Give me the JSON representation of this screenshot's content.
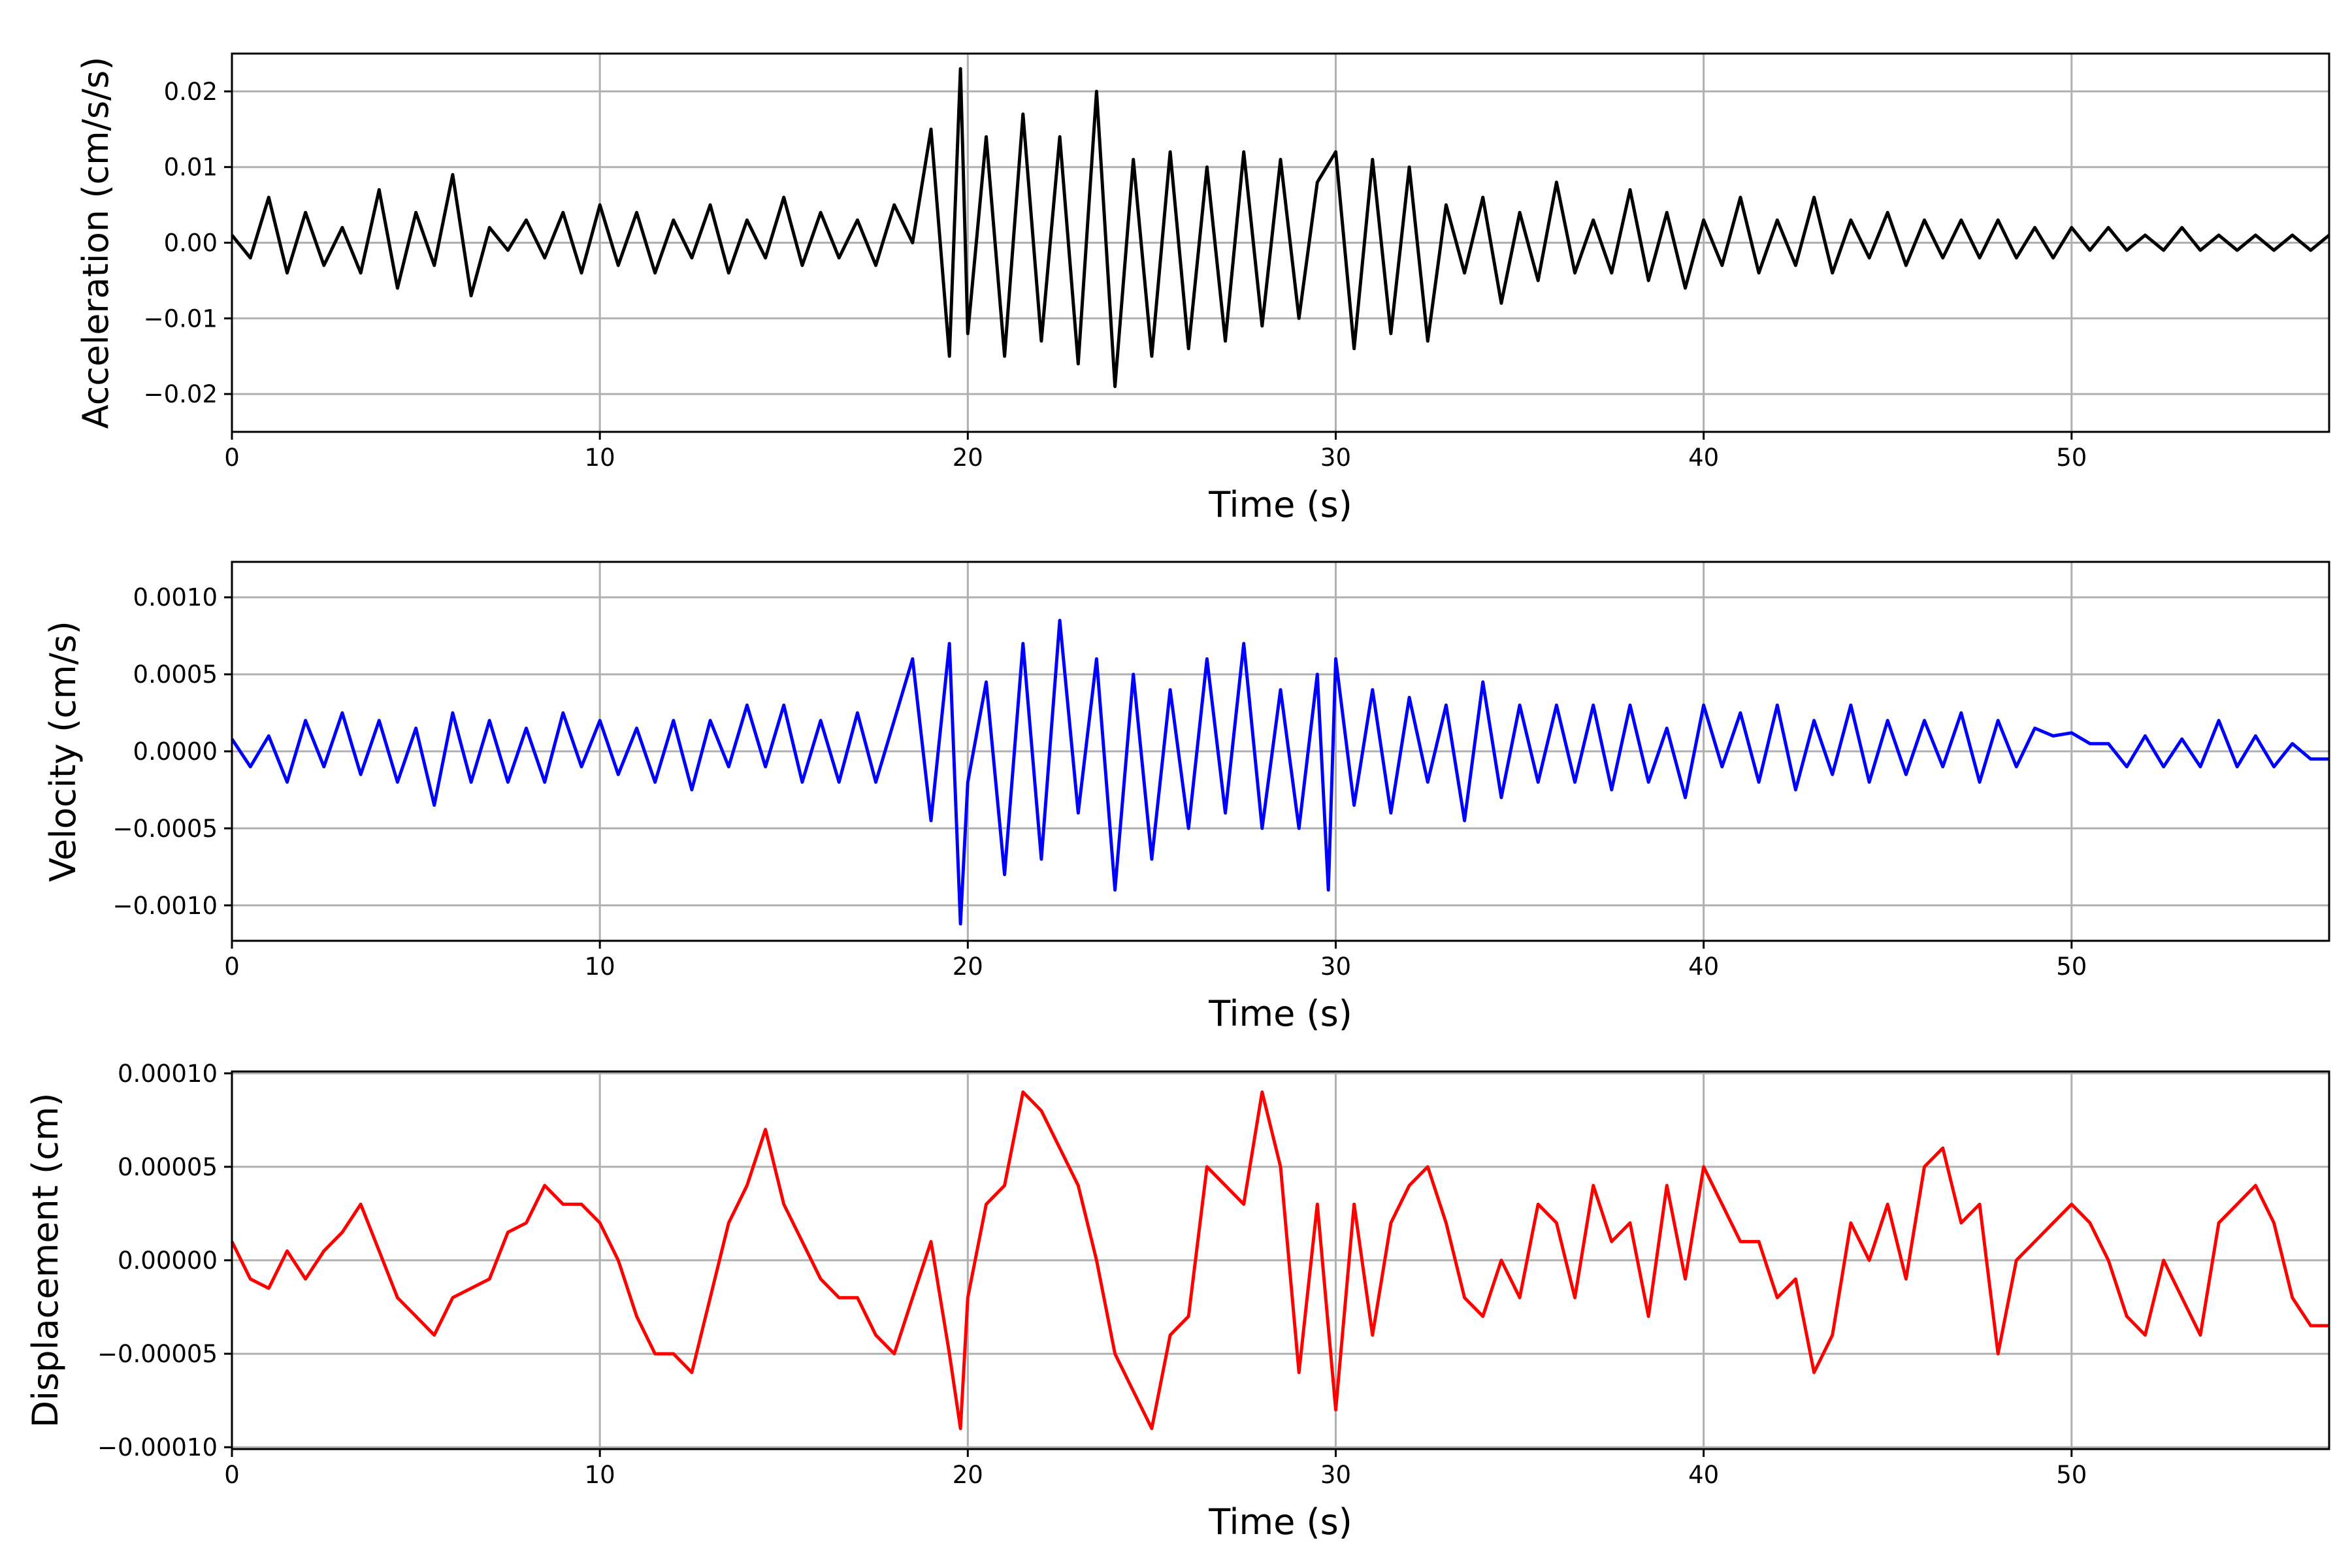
{
  "chart_data": [
    {
      "type": "line",
      "title": "",
      "xlabel": "Time (s)",
      "ylabel": "Acceleration (cm/s/s)",
      "xlim": [
        0,
        57
      ],
      "ylim": [
        -0.025,
        0.025
      ],
      "xticks": [
        0,
        10,
        20,
        30,
        40,
        50
      ],
      "xtick_labels": [
        "0",
        "10",
        "20",
        "30",
        "40",
        "50"
      ],
      "yticks": [
        -0.02,
        -0.01,
        0.0,
        0.01,
        0.02
      ],
      "ytick_labels": [
        "−0.02",
        "−0.01",
        "0.00",
        "0.01",
        "0.02"
      ],
      "grid": true,
      "color": "#000000",
      "series": [
        {
          "x": [
            0,
            0.5,
            1,
            1.5,
            2,
            2.5,
            3,
            3.5,
            4,
            4.5,
            5,
            5.5,
            6,
            6.5,
            7,
            7.5,
            8,
            8.5,
            9,
            9.5,
            10,
            10.5,
            11,
            11.5,
            12,
            12.5,
            13,
            13.5,
            14,
            14.5,
            15,
            15.5,
            16,
            16.5,
            17,
            17.5,
            18,
            18.5,
            19,
            19.5,
            19.8,
            20,
            20.5,
            21,
            21.5,
            22,
            22.5,
            23,
            23.5,
            24,
            24.5,
            25,
            25.5,
            26,
            26.5,
            27,
            27.5,
            28,
            28.5,
            29,
            29.5,
            30,
            30.5,
            31,
            31.5,
            32,
            32.5,
            33,
            33.5,
            34,
            34.5,
            35,
            35.5,
            36,
            36.5,
            37,
            37.5,
            38,
            38.5,
            39,
            39.5,
            40,
            40.5,
            41,
            41.5,
            42,
            42.5,
            43,
            43.5,
            44,
            44.5,
            45,
            45.5,
            46,
            46.5,
            47,
            47.5,
            48,
            48.5,
            49,
            49.5,
            50,
            50.5,
            51,
            51.5,
            52,
            52.5,
            53,
            53.5,
            54,
            54.5,
            55,
            55.5,
            56,
            56.5,
            57
          ],
          "y": [
            0.001,
            -0.002,
            0.006,
            -0.004,
            0.004,
            -0.003,
            0.002,
            -0.004,
            0.007,
            -0.006,
            0.004,
            -0.003,
            0.009,
            -0.007,
            0.002,
            -0.001,
            0.003,
            -0.002,
            0.004,
            -0.004,
            0.005,
            -0.003,
            0.004,
            -0.004,
            0.003,
            -0.002,
            0.005,
            -0.004,
            0.003,
            -0.002,
            0.006,
            -0.003,
            0.004,
            -0.002,
            0.003,
            -0.003,
            0.005,
            0.0,
            0.015,
            -0.015,
            0.023,
            -0.012,
            0.014,
            -0.015,
            0.017,
            -0.013,
            0.014,
            -0.016,
            0.02,
            -0.019,
            0.011,
            -0.015,
            0.012,
            -0.014,
            0.01,
            -0.013,
            0.012,
            -0.011,
            0.011,
            -0.01,
            0.008,
            0.012,
            -0.014,
            0.011,
            -0.012,
            0.01,
            -0.013,
            0.005,
            -0.004,
            0.006,
            -0.008,
            0.004,
            -0.005,
            0.008,
            -0.004,
            0.003,
            -0.004,
            0.007,
            -0.005,
            0.004,
            -0.006,
            0.003,
            -0.003,
            0.006,
            -0.004,
            0.003,
            -0.003,
            0.006,
            -0.004,
            0.003,
            -0.002,
            0.004,
            -0.003,
            0.003,
            -0.002,
            0.003,
            -0.002,
            0.003,
            -0.002,
            0.002,
            -0.002,
            0.002,
            -0.001,
            0.002,
            -0.001,
            0.001,
            -0.001,
            0.002,
            -0.001,
            0.001,
            -0.001,
            0.001,
            -0.001,
            0.001,
            -0.001,
            0.001
          ]
        }
      ]
    },
    {
      "type": "line",
      "title": "",
      "xlabel": "Time (s)",
      "ylabel": "Velocity (cm/s)",
      "xlim": [
        0,
        57
      ],
      "ylim": [
        -0.00123,
        0.00123
      ],
      "xticks": [
        0,
        10,
        20,
        30,
        40,
        50
      ],
      "xtick_labels": [
        "0",
        "10",
        "20",
        "30",
        "40",
        "50"
      ],
      "yticks": [
        -0.001,
        -0.0005,
        0.0,
        0.0005,
        0.001
      ],
      "ytick_labels": [
        "−0.0010",
        "−0.0005",
        "0.0000",
        "0.0005",
        "0.0010"
      ],
      "grid": true,
      "color": "#0000ff",
      "series": [
        {
          "x": [
            0,
            0.5,
            1,
            1.5,
            2,
            2.5,
            3,
            3.5,
            4,
            4.5,
            5,
            5.5,
            6,
            6.5,
            7,
            7.5,
            8,
            8.5,
            9,
            9.5,
            10,
            10.5,
            11,
            11.5,
            12,
            12.5,
            13,
            13.5,
            14,
            14.5,
            15,
            15.5,
            16,
            16.5,
            17,
            17.5,
            18,
            18.5,
            19,
            19.5,
            19.8,
            20,
            20.5,
            21,
            21.5,
            22,
            22.5,
            23,
            23.5,
            24,
            24.5,
            25,
            25.5,
            26,
            26.5,
            27,
            27.5,
            28,
            28.5,
            29,
            29.5,
            29.8,
            30,
            30.5,
            31,
            31.5,
            32,
            32.5,
            33,
            33.5,
            34,
            34.5,
            35,
            35.5,
            36,
            36.5,
            37,
            37.5,
            38,
            38.5,
            39,
            39.5,
            40,
            40.5,
            41,
            41.5,
            42,
            42.5,
            43,
            43.5,
            44,
            44.5,
            45,
            45.5,
            46,
            46.5,
            47,
            47.5,
            48,
            48.5,
            49,
            49.5,
            50,
            50.5,
            51,
            51.5,
            52,
            52.5,
            53,
            53.5,
            54,
            54.5,
            55,
            55.5,
            56,
            56.5,
            57
          ],
          "y": [
            8e-05,
            -0.0001,
            0.0001,
            -0.0002,
            0.0002,
            -0.0001,
            0.00025,
            -0.00015,
            0.0002,
            -0.0002,
            0.00015,
            -0.00035,
            0.00025,
            -0.0002,
            0.0002,
            -0.0002,
            0.00015,
            -0.0002,
            0.00025,
            -0.0001,
            0.0002,
            -0.00015,
            0.00015,
            -0.0002,
            0.0002,
            -0.00025,
            0.0002,
            -0.0001,
            0.0003,
            -0.0001,
            0.0003,
            -0.0002,
            0.0002,
            -0.0002,
            0.00025,
            -0.0002,
            0.0002,
            0.0006,
            -0.00045,
            0.0007,
            -0.00112,
            -0.0002,
            0.00045,
            -0.0008,
            0.0007,
            -0.0007,
            0.00085,
            -0.0004,
            0.0006,
            -0.0009,
            0.0005,
            -0.0007,
            0.0004,
            -0.0005,
            0.0006,
            -0.0004,
            0.0007,
            -0.0005,
            0.0004,
            -0.0005,
            0.0005,
            -0.0009,
            0.0006,
            -0.00035,
            0.0004,
            -0.0004,
            0.00035,
            -0.0002,
            0.0003,
            -0.00045,
            0.00045,
            -0.0003,
            0.0003,
            -0.0002,
            0.0003,
            -0.0002,
            0.0003,
            -0.00025,
            0.0003,
            -0.0002,
            0.00015,
            -0.0003,
            0.0003,
            -0.0001,
            0.00025,
            -0.0002,
            0.0003,
            -0.00025,
            0.0002,
            -0.00015,
            0.0003,
            -0.0002,
            0.0002,
            -0.00015,
            0.0002,
            -0.0001,
            0.00025,
            -0.0002,
            0.0002,
            -0.0001,
            0.00015,
            0.0001,
            0.00012,
            5e-05,
            5e-05,
            -0.0001,
            0.0001,
            -0.0001,
            8e-05,
            -0.0001,
            0.0002,
            -0.0001,
            0.0001,
            -0.0001,
            5e-05,
            -5e-05,
            -5e-05
          ]
        }
      ]
    },
    {
      "type": "line",
      "title": "",
      "xlabel": "Time (s)",
      "ylabel": "Displacement (cm)",
      "xlim": [
        0,
        57
      ],
      "ylim": [
        -0.000101,
        0.000101
      ],
      "xticks": [
        0,
        10,
        20,
        30,
        40,
        50
      ],
      "xtick_labels": [
        "0",
        "10",
        "20",
        "30",
        "40",
        "50"
      ],
      "yticks": [
        -0.0001,
        -5e-05,
        0.0,
        5e-05,
        0.0001
      ],
      "ytick_labels": [
        "−0.00010",
        "−0.00005",
        "0.00000",
        "0.00005",
        "0.00010"
      ],
      "grid": true,
      "color": "#ff0000",
      "series": [
        {
          "x": [
            0,
            0.5,
            1,
            1.5,
            2,
            2.5,
            3,
            3.5,
            4,
            4.5,
            5,
            5.5,
            6,
            6.5,
            7,
            7.5,
            8,
            8.5,
            9,
            9.5,
            10,
            10.5,
            11,
            11.5,
            12,
            12.5,
            13,
            13.5,
            14,
            14.5,
            15,
            15.5,
            16,
            16.5,
            17,
            17.5,
            18,
            18.5,
            19,
            19.5,
            19.8,
            20,
            20.5,
            21,
            21.5,
            22,
            22.5,
            23,
            23.5,
            24,
            24.5,
            25,
            25.5,
            26,
            26.5,
            27,
            27.5,
            28,
            28.5,
            29,
            29.5,
            30,
            30.5,
            31,
            31.5,
            32,
            32.5,
            33,
            33.5,
            34,
            34.5,
            35,
            35.5,
            36,
            36.5,
            37,
            37.5,
            38,
            38.5,
            39,
            39.5,
            40,
            40.5,
            41,
            41.5,
            42,
            42.5,
            43,
            43.5,
            44,
            44.5,
            45,
            45.5,
            46,
            46.5,
            47,
            47.5,
            48,
            48.5,
            49,
            49.5,
            50,
            50.5,
            51,
            51.5,
            52,
            52.5,
            53,
            53.5,
            54,
            54.5,
            55,
            55.5,
            56,
            56.5,
            57
          ],
          "y": [
            1e-05,
            -1e-05,
            -1.5e-05,
            5e-06,
            -1e-05,
            5e-06,
            1.5e-05,
            3e-05,
            5e-06,
            -2e-05,
            -3e-05,
            -4e-05,
            -2e-05,
            -1.5e-05,
            -1e-05,
            1.5e-05,
            2e-05,
            4e-05,
            3e-05,
            3e-05,
            2e-05,
            0.0,
            -3e-05,
            -5e-05,
            -5e-05,
            -6e-05,
            -2e-05,
            2e-05,
            4e-05,
            7e-05,
            3e-05,
            1e-05,
            -1e-05,
            -2e-05,
            -2e-05,
            -4e-05,
            -5e-05,
            -2e-05,
            1e-05,
            -5e-05,
            -9e-05,
            -2e-05,
            3e-05,
            4e-05,
            9e-05,
            8e-05,
            6e-05,
            4e-05,
            0.0,
            -5e-05,
            -7e-05,
            -9e-05,
            -4e-05,
            -3e-05,
            5e-05,
            4e-05,
            3e-05,
            9e-05,
            5e-05,
            -6e-05,
            3e-05,
            -8e-05,
            3e-05,
            -4e-05,
            2e-05,
            4e-05,
            5e-05,
            2e-05,
            -2e-05,
            -3e-05,
            0.0,
            -2e-05,
            3e-05,
            2e-05,
            -2e-05,
            4e-05,
            1e-05,
            2e-05,
            -3e-05,
            4e-05,
            -1e-05,
            5e-05,
            3e-05,
            1e-05,
            1e-05,
            -2e-05,
            -1e-05,
            -6e-05,
            -4e-05,
            2e-05,
            0.0,
            3e-05,
            -1e-05,
            5e-05,
            6e-05,
            2e-05,
            3e-05,
            -5e-05,
            0.0,
            1e-05,
            2e-05,
            3e-05,
            2e-05,
            0.0,
            -3e-05,
            -4e-05,
            0.0,
            -2e-05,
            -4e-05,
            2e-05,
            3e-05,
            4e-05,
            2e-05,
            -2e-05,
            -3.5e-05,
            -3.5e-05
          ]
        }
      ]
    }
  ]
}
